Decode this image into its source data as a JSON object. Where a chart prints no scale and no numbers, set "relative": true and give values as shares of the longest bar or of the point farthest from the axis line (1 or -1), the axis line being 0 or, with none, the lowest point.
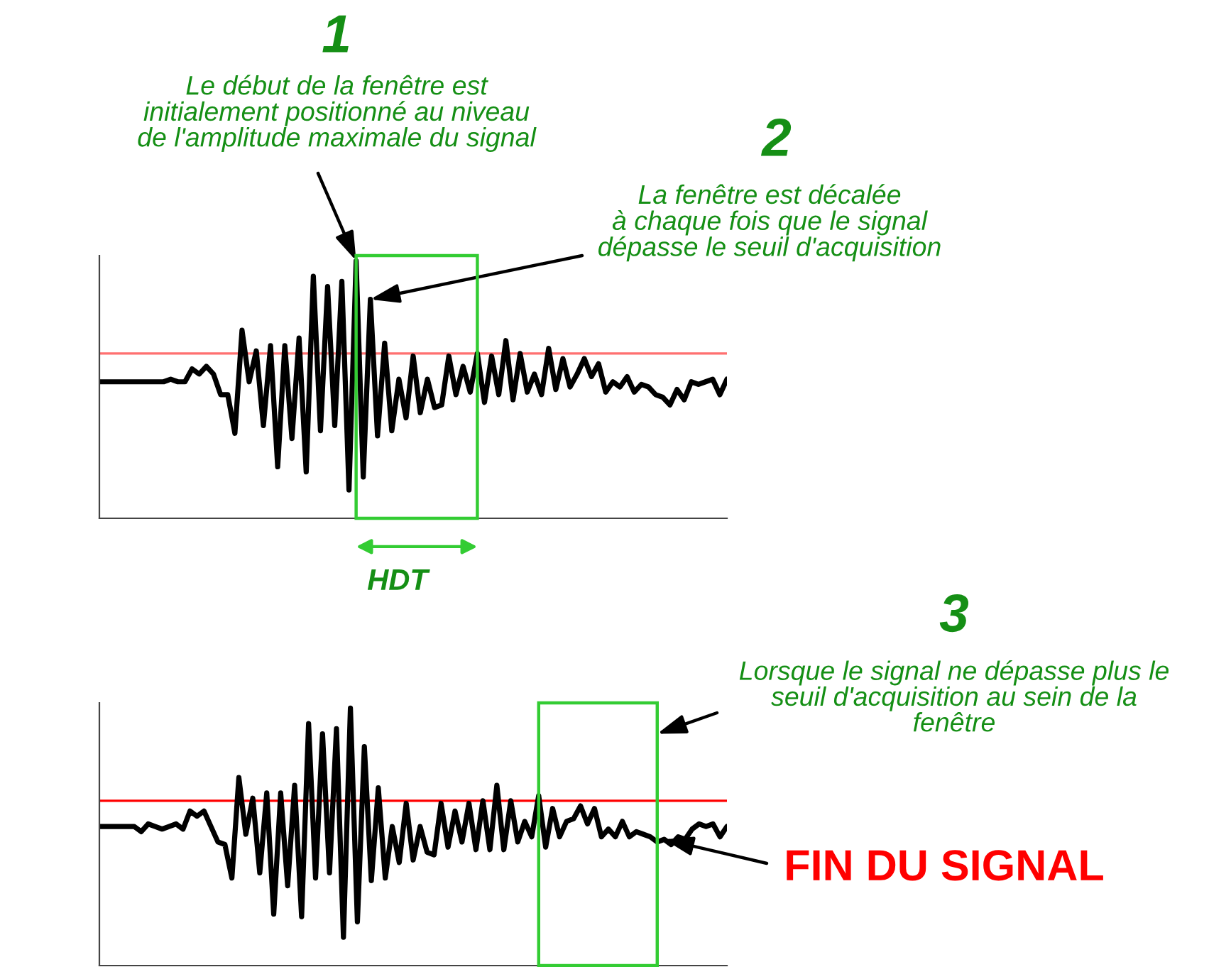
{
  "chart_data": [
    {
      "type": "line",
      "relative": true,
      "categories": [
        null,
        null,
        null,
        null,
        null,
        null,
        null,
        null,
        null,
        null,
        null,
        null,
        null,
        null,
        null,
        null,
        null,
        null,
        null,
        null,
        null,
        null,
        null,
        null,
        null,
        null,
        null,
        null,
        null,
        null,
        null,
        null,
        null,
        null,
        null,
        null,
        null,
        null,
        null,
        null,
        null,
        null,
        null,
        null,
        null,
        null,
        null,
        null,
        null,
        null,
        null,
        null,
        null,
        null,
        null,
        null,
        null,
        null,
        null,
        null,
        null,
        null,
        null,
        null,
        null,
        null,
        null,
        null,
        null,
        null,
        null,
        null,
        null,
        null,
        null,
        null,
        null,
        null,
        null,
        null,
        null,
        null,
        null,
        null,
        null,
        null,
        null,
        null,
        null
      ],
      "marker": "none",
      "line_style": "solid",
      "series": [
        {
          "color": "#000000",
          "values": [
            0.53,
            0.53,
            0.53,
            0.53,
            0.53,
            0.53,
            0.53,
            0.53,
            0.53,
            0.53,
            0.54,
            0.53,
            0.53,
            0.58,
            0.56,
            0.59,
            0.56,
            0.48,
            0.48,
            0.33,
            0.73,
            0.53,
            0.65,
            0.36,
            0.67,
            0.2,
            0.67,
            0.31,
            0.7,
            0.18,
            0.94,
            0.34,
            0.9,
            0.36,
            0.92,
            0.11,
            1.0,
            0.16,
            0.85,
            0.32,
            0.68,
            0.34,
            0.54,
            0.39,
            0.63,
            0.41,
            0.54,
            0.43,
            0.44,
            0.63,
            0.48,
            0.59,
            0.49,
            0.64,
            0.45,
            0.63,
            0.48,
            0.69,
            0.46,
            0.64,
            0.49,
            0.56,
            0.48,
            0.66,
            0.5,
            0.62,
            0.51,
            0.56,
            0.62,
            0.55,
            0.6,
            0.49,
            0.53,
            0.51,
            0.55,
            0.49,
            0.52,
            0.51,
            0.48,
            0.47,
            0.44,
            0.5,
            0.46,
            0.53,
            0.52,
            0.53,
            0.54,
            0.48,
            0.54
          ]
        }
      ],
      "ref_lines": [
        {
          "axis": "y",
          "value": 0.64,
          "color": "#ff7070"
        }
      ],
      "annotations": [
        "1",
        "Le début de la fenêtre est\ninitialement positionné au niveau\nde l'amplitude maximale du signal",
        "2",
        "La fenêtre est décalée\nà chaque fois que le signal\ndépasse le seuil d'acquisition",
        "HDT"
      ]
    },
    {
      "type": "line",
      "relative": true,
      "categories": [
        null,
        null,
        null,
        null,
        null,
        null,
        null,
        null,
        null,
        null,
        null,
        null,
        null,
        null,
        null,
        null,
        null,
        null,
        null,
        null,
        null,
        null,
        null,
        null,
        null,
        null,
        null,
        null,
        null,
        null,
        null,
        null,
        null,
        null,
        null,
        null,
        null,
        null,
        null,
        null,
        null,
        null,
        null,
        null,
        null,
        null,
        null,
        null,
        null,
        null,
        null,
        null,
        null,
        null,
        null,
        null,
        null,
        null,
        null,
        null,
        null,
        null,
        null,
        null,
        null,
        null,
        null,
        null,
        null,
        null,
        null,
        null,
        null,
        null,
        null,
        null,
        null,
        null,
        null,
        null,
        null,
        null,
        null,
        null,
        null,
        null,
        null,
        null,
        null,
        null,
        null
      ],
      "marker": "none",
      "line_style": "solid",
      "series": [
        {
          "color": "#000000",
          "values": [
            0.54,
            0.54,
            0.54,
            0.54,
            0.54,
            0.54,
            0.52,
            0.55,
            0.54,
            0.53,
            0.54,
            0.55,
            0.53,
            0.6,
            0.58,
            0.6,
            0.54,
            0.48,
            0.47,
            0.34,
            0.73,
            0.51,
            0.65,
            0.36,
            0.67,
            0.2,
            0.67,
            0.31,
            0.7,
            0.19,
            0.94,
            0.34,
            0.9,
            0.36,
            0.92,
            0.11,
            1.0,
            0.17,
            0.85,
            0.33,
            0.69,
            0.34,
            0.54,
            0.4,
            0.63,
            0.41,
            0.54,
            0.44,
            0.43,
            0.63,
            0.46,
            0.6,
            0.48,
            0.63,
            0.45,
            0.64,
            0.45,
            0.7,
            0.45,
            0.64,
            0.48,
            0.56,
            0.5,
            0.66,
            0.46,
            0.61,
            0.5,
            0.56,
            0.57,
            0.62,
            0.55,
            0.61,
            0.5,
            0.53,
            0.5,
            0.56,
            0.5,
            0.52,
            0.51,
            0.5,
            0.48,
            0.49,
            0.47,
            0.5,
            0.49,
            0.53,
            0.55,
            0.54,
            0.55,
            0.5,
            0.54
          ]
        }
      ],
      "ref_lines": [
        {
          "axis": "y",
          "value": 0.64,
          "color": "#ff0000"
        }
      ],
      "annotations": [
        "3",
        "Lorsque le signal ne dépasse plus le\nseuil d'acquisition au sein de la\nfenêtre",
        "FIN DU SIGNAL"
      ]
    }
  ]
}
